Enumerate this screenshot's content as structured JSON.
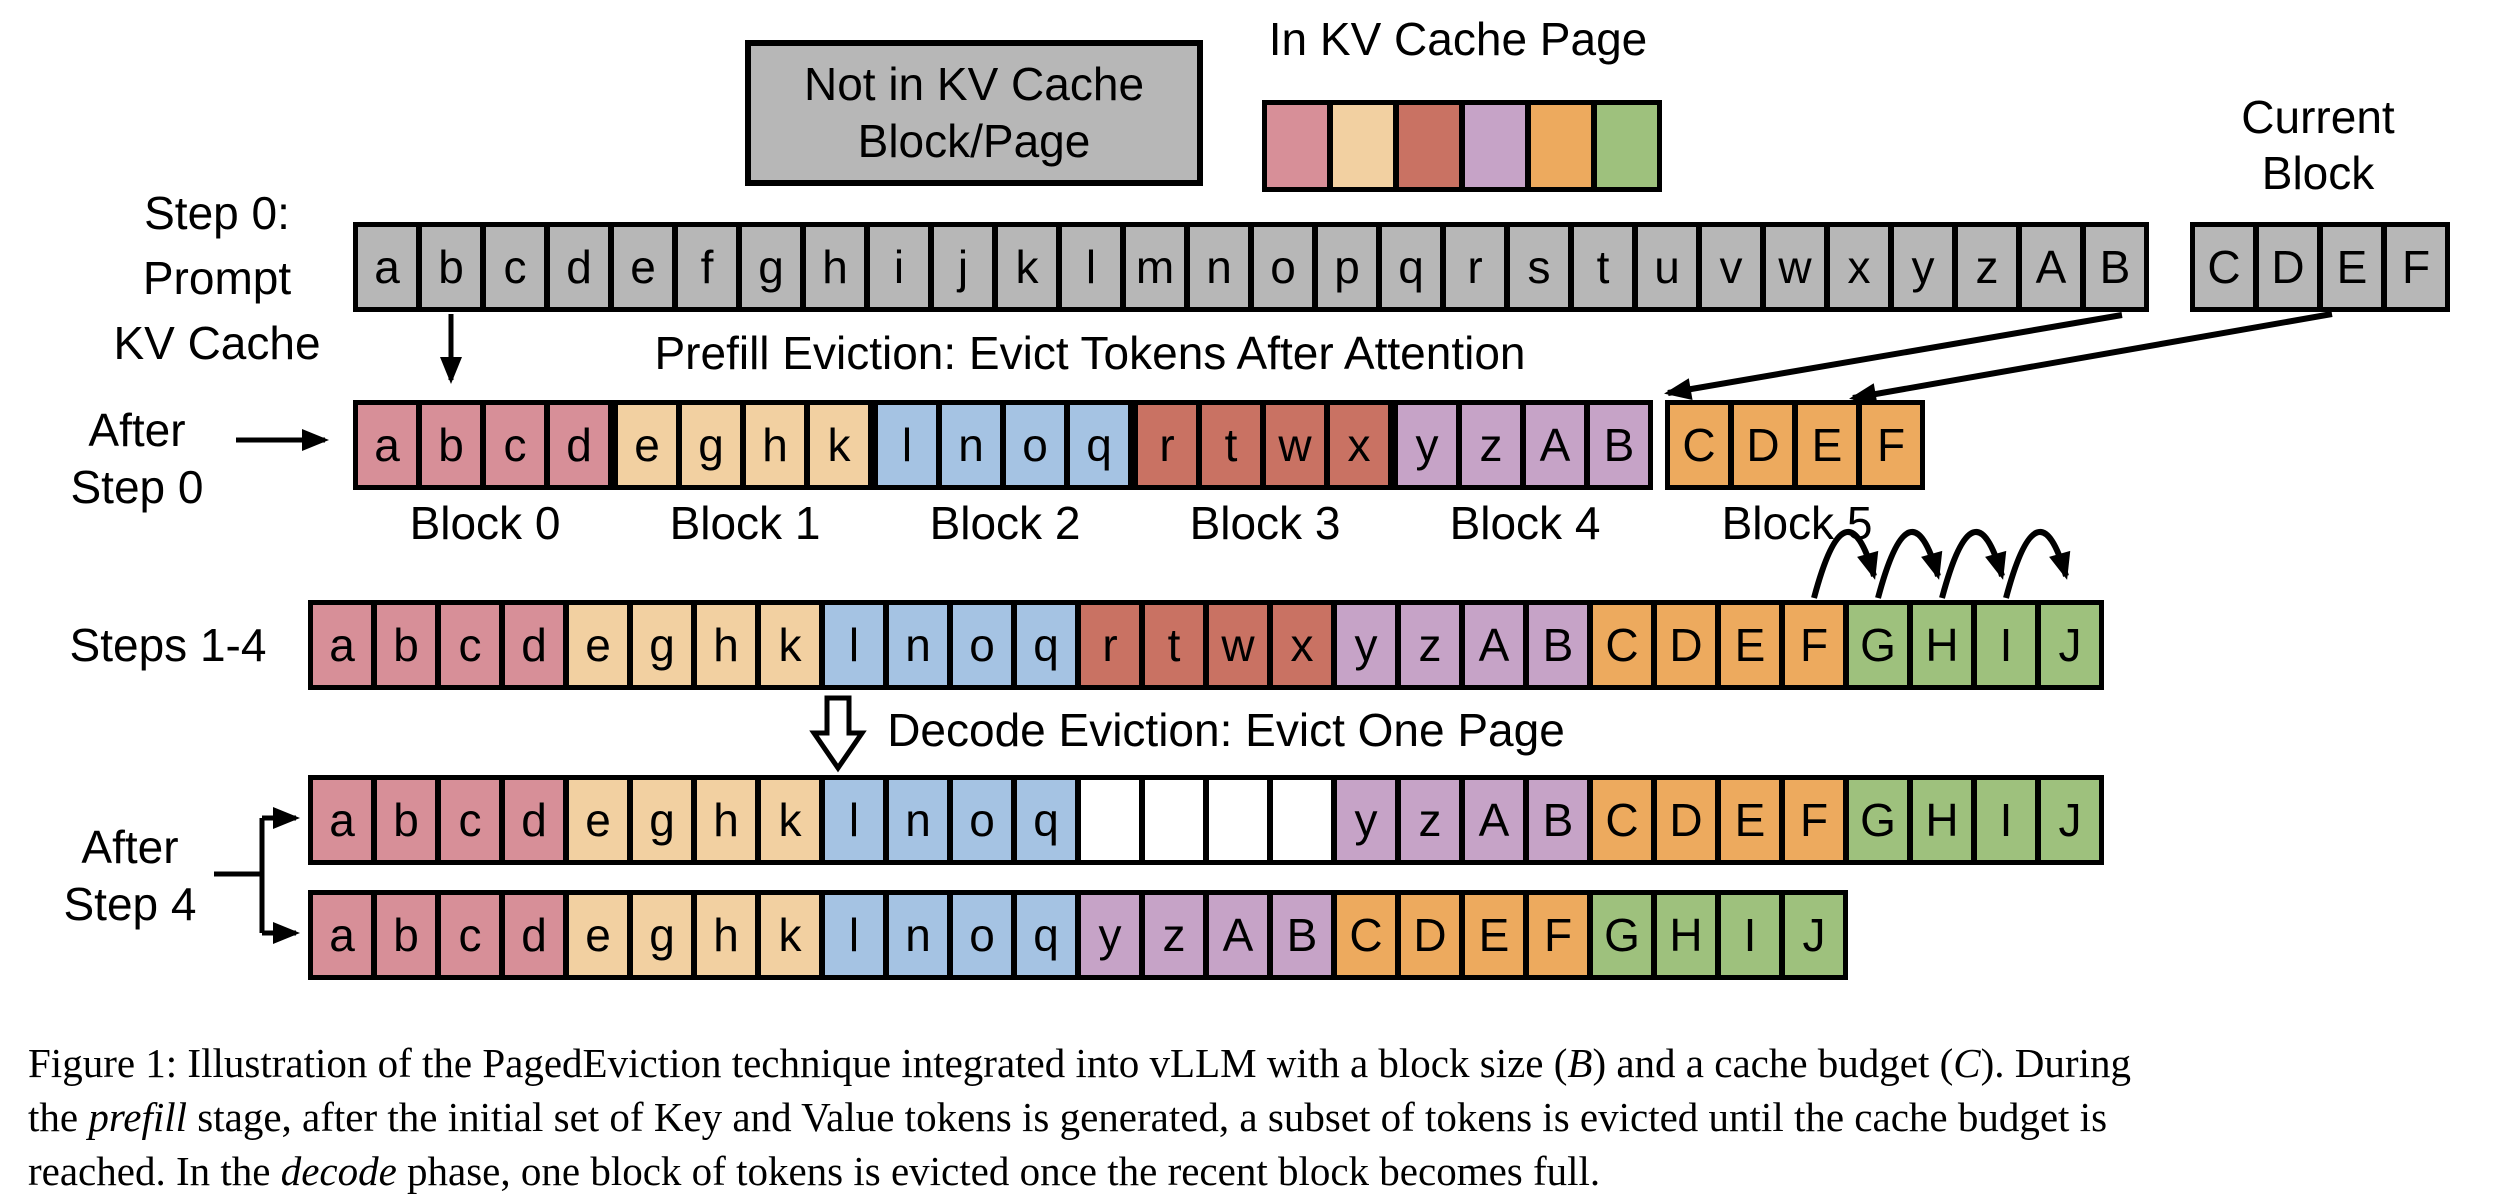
{
  "palette": {
    "gray": "#b7b7b7",
    "pink": "#d78f98",
    "peach": "#f2d0a1",
    "blue": "#a5c3e3",
    "terracotta": "#c97263",
    "mauve": "#c6a3c7",
    "orange": "#edaa5e",
    "green": "#9ec17d",
    "white": "#ffffff"
  },
  "legend": {
    "not_in_cache": [
      "Not in KV Cache",
      "Block/Page"
    ],
    "in_cache_title": "In KV Cache Page",
    "page_cells": [
      {
        "t": "",
        "c": "pink"
      },
      {
        "t": "",
        "c": "peach"
      },
      {
        "t": "",
        "c": "terracotta"
      },
      {
        "t": "",
        "c": "mauve"
      },
      {
        "t": "",
        "c": "orange"
      },
      {
        "t": "",
        "c": "green"
      }
    ]
  },
  "labels": {
    "step0": [
      "Step 0:",
      "Prompt",
      "KV Cache"
    ],
    "current_block": [
      "Current",
      "Block"
    ],
    "after_step0": [
      "After",
      "Step 0"
    ],
    "steps_1_4": "Steps 1-4",
    "after_step4": [
      "After",
      "Step 4"
    ]
  },
  "texts": {
    "prefill": "Prefill Eviction: Evict Tokens After Attention",
    "decode": "Decode Eviction: Evict One Page"
  },
  "prompt_row": {
    "cells": [
      {
        "t": "a",
        "c": "gray"
      },
      {
        "t": "b",
        "c": "gray"
      },
      {
        "t": "c",
        "c": "gray"
      },
      {
        "t": "d",
        "c": "gray"
      },
      {
        "t": "e",
        "c": "gray"
      },
      {
        "t": "f",
        "c": "gray"
      },
      {
        "t": "g",
        "c": "gray"
      },
      {
        "t": "h",
        "c": "gray"
      },
      {
        "t": "i",
        "c": "gray"
      },
      {
        "t": "j",
        "c": "gray"
      },
      {
        "t": "k",
        "c": "gray"
      },
      {
        "t": "l",
        "c": "gray"
      },
      {
        "t": "m",
        "c": "gray"
      },
      {
        "t": "n",
        "c": "gray"
      },
      {
        "t": "o",
        "c": "gray"
      },
      {
        "t": "p",
        "c": "gray"
      },
      {
        "t": "q",
        "c": "gray"
      },
      {
        "t": "r",
        "c": "gray"
      },
      {
        "t": "s",
        "c": "gray"
      },
      {
        "t": "t",
        "c": "gray"
      },
      {
        "t": "u",
        "c": "gray"
      },
      {
        "t": "v",
        "c": "gray"
      },
      {
        "t": "w",
        "c": "gray"
      },
      {
        "t": "x",
        "c": "gray"
      },
      {
        "t": "y",
        "c": "gray"
      },
      {
        "t": "z",
        "c": "gray"
      },
      {
        "t": "A",
        "c": "gray"
      },
      {
        "t": "B",
        "c": "gray"
      }
    ]
  },
  "current_block": {
    "cells": [
      {
        "t": "C",
        "c": "gray"
      },
      {
        "t": "D",
        "c": "gray"
      },
      {
        "t": "E",
        "c": "gray"
      },
      {
        "t": "F",
        "c": "gray"
      }
    ]
  },
  "after_step0": {
    "blocks": [
      {
        "label": "Block 0",
        "cells": [
          {
            "t": "a",
            "c": "pink"
          },
          {
            "t": "b",
            "c": "pink"
          },
          {
            "t": "c",
            "c": "pink"
          },
          {
            "t": "d",
            "c": "pink"
          }
        ]
      },
      {
        "label": "Block 1",
        "cells": [
          {
            "t": "e",
            "c": "peach"
          },
          {
            "t": "g",
            "c": "peach"
          },
          {
            "t": "h",
            "c": "peach"
          },
          {
            "t": "k",
            "c": "peach"
          }
        ]
      },
      {
        "label": "Block 2",
        "cells": [
          {
            "t": "l",
            "c": "blue"
          },
          {
            "t": "n",
            "c": "blue"
          },
          {
            "t": "o",
            "c": "blue"
          },
          {
            "t": "q",
            "c": "blue"
          }
        ]
      },
      {
        "label": "Block 3",
        "cells": [
          {
            "t": "r",
            "c": "terracotta"
          },
          {
            "t": "t",
            "c": "terracotta"
          },
          {
            "t": "w",
            "c": "terracotta"
          },
          {
            "t": "x",
            "c": "terracotta"
          }
        ]
      },
      {
        "label": "Block 4",
        "cells": [
          {
            "t": "y",
            "c": "mauve"
          },
          {
            "t": "z",
            "c": "mauve"
          },
          {
            "t": "A",
            "c": "mauve"
          },
          {
            "t": "B",
            "c": "mauve"
          }
        ]
      },
      {
        "label": "Block 5",
        "cells": [
          {
            "t": "C",
            "c": "orange"
          },
          {
            "t": "D",
            "c": "orange"
          },
          {
            "t": "E",
            "c": "orange"
          },
          {
            "t": "F",
            "c": "orange"
          }
        ]
      }
    ]
  },
  "steps_1_4": {
    "cells": [
      {
        "t": "a",
        "c": "pink"
      },
      {
        "t": "b",
        "c": "pink"
      },
      {
        "t": "c",
        "c": "pink"
      },
      {
        "t": "d",
        "c": "pink"
      },
      {
        "t": "e",
        "c": "peach"
      },
      {
        "t": "g",
        "c": "peach"
      },
      {
        "t": "h",
        "c": "peach"
      },
      {
        "t": "k",
        "c": "peach"
      },
      {
        "t": "l",
        "c": "blue"
      },
      {
        "t": "n",
        "c": "blue"
      },
      {
        "t": "o",
        "c": "blue"
      },
      {
        "t": "q",
        "c": "blue"
      },
      {
        "t": "r",
        "c": "terracotta"
      },
      {
        "t": "t",
        "c": "terracotta"
      },
      {
        "t": "w",
        "c": "terracotta"
      },
      {
        "t": "x",
        "c": "terracotta"
      },
      {
        "t": "y",
        "c": "mauve"
      },
      {
        "t": "z",
        "c": "mauve"
      },
      {
        "t": "A",
        "c": "mauve"
      },
      {
        "t": "B",
        "c": "mauve"
      },
      {
        "t": "C",
        "c": "orange"
      },
      {
        "t": "D",
        "c": "orange"
      },
      {
        "t": "E",
        "c": "orange"
      },
      {
        "t": "F",
        "c": "orange"
      },
      {
        "t": "G",
        "c": "green"
      },
      {
        "t": "H",
        "c": "green"
      },
      {
        "t": "I",
        "c": "green"
      },
      {
        "t": "J",
        "c": "green"
      }
    ]
  },
  "after_step4": {
    "row1": [
      {
        "t": "a",
        "c": "pink"
      },
      {
        "t": "b",
        "c": "pink"
      },
      {
        "t": "c",
        "c": "pink"
      },
      {
        "t": "d",
        "c": "pink"
      },
      {
        "t": "e",
        "c": "peach"
      },
      {
        "t": "g",
        "c": "peach"
      },
      {
        "t": "h",
        "c": "peach"
      },
      {
        "t": "k",
        "c": "peach"
      },
      {
        "t": "l",
        "c": "blue"
      },
      {
        "t": "n",
        "c": "blue"
      },
      {
        "t": "o",
        "c": "blue"
      },
      {
        "t": "q",
        "c": "blue"
      },
      {
        "t": "",
        "c": "white"
      },
      {
        "t": "",
        "c": "white"
      },
      {
        "t": "",
        "c": "white"
      },
      {
        "t": "",
        "c": "white"
      },
      {
        "t": "y",
        "c": "mauve"
      },
      {
        "t": "z",
        "c": "mauve"
      },
      {
        "t": "A",
        "c": "mauve"
      },
      {
        "t": "B",
        "c": "mauve"
      },
      {
        "t": "C",
        "c": "orange"
      },
      {
        "t": "D",
        "c": "orange"
      },
      {
        "t": "E",
        "c": "orange"
      },
      {
        "t": "F",
        "c": "orange"
      },
      {
        "t": "G",
        "c": "green"
      },
      {
        "t": "H",
        "c": "green"
      },
      {
        "t": "I",
        "c": "green"
      },
      {
        "t": "J",
        "c": "green"
      }
    ],
    "row2": [
      {
        "t": "a",
        "c": "pink"
      },
      {
        "t": "b",
        "c": "pink"
      },
      {
        "t": "c",
        "c": "pink"
      },
      {
        "t": "d",
        "c": "pink"
      },
      {
        "t": "e",
        "c": "peach"
      },
      {
        "t": "g",
        "c": "peach"
      },
      {
        "t": "h",
        "c": "peach"
      },
      {
        "t": "k",
        "c": "peach"
      },
      {
        "t": "l",
        "c": "blue"
      },
      {
        "t": "n",
        "c": "blue"
      },
      {
        "t": "o",
        "c": "blue"
      },
      {
        "t": "q",
        "c": "blue"
      },
      {
        "t": "y",
        "c": "mauve"
      },
      {
        "t": "z",
        "c": "mauve"
      },
      {
        "t": "A",
        "c": "mauve"
      },
      {
        "t": "B",
        "c": "mauve"
      },
      {
        "t": "C",
        "c": "orange"
      },
      {
        "t": "D",
        "c": "orange"
      },
      {
        "t": "E",
        "c": "orange"
      },
      {
        "t": "F",
        "c": "orange"
      },
      {
        "t": "G",
        "c": "green"
      },
      {
        "t": "H",
        "c": "green"
      },
      {
        "t": "I",
        "c": "green"
      },
      {
        "t": "J",
        "c": "green"
      }
    ]
  },
  "caption": {
    "lines": [
      [
        {
          "t": "Figure 1: Illustration of the PagedEviction technique integrated into vLLM with a block size ("
        },
        {
          "t": "B",
          "i": true
        },
        {
          "t": ") and a cache budget ("
        },
        {
          "t": "C",
          "i": true
        },
        {
          "t": "). During"
        }
      ],
      [
        {
          "t": "the "
        },
        {
          "t": "prefill",
          "i": true
        },
        {
          "t": " stage, after the initial set of Key and Value tokens is generated, a subset of tokens is evicted until the cache budget is"
        }
      ],
      [
        {
          "t": "reached. In the "
        },
        {
          "t": "decode",
          "i": true
        },
        {
          "t": " phase, one block of tokens is evicted once the recent block becomes full."
        }
      ]
    ]
  }
}
